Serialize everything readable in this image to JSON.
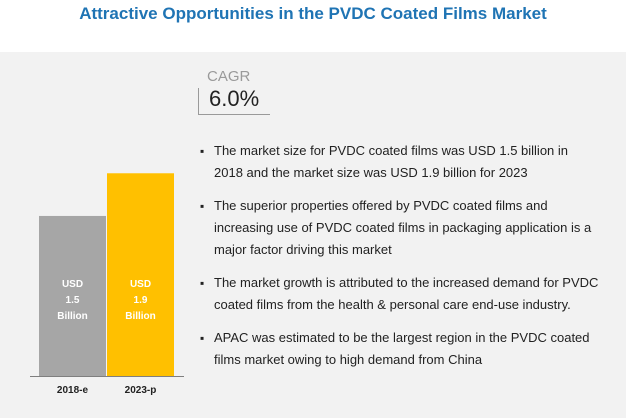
{
  "title": "Attractive Opportunities in the PVDC Coated Films Market",
  "cagr": {
    "label": "CAGR",
    "value": "6.0%"
  },
  "chart_data": {
    "type": "bar",
    "categories": [
      "2018-e",
      "2023-p"
    ],
    "values": [
      1.5,
      1.9
    ],
    "bar_labels": [
      [
        "USD",
        "1.5",
        "Billion"
      ],
      [
        "USD",
        "1.9",
        "Billion"
      ]
    ],
    "colors": [
      "#a6a6a6",
      "#ffc000"
    ],
    "title": "",
    "xlabel": "",
    "ylabel": "",
    "grid": false
  },
  "bullets": [
    "The market size for PVDC coated films was USD 1.5 billion in 2018 and the market size was USD 1.9 billion for 2023",
    "The superior properties offered by PVDC coated films and increasing use of PVDC coated films in packaging application is a major factor driving this market",
    "The market growth is attributed to the increased demand for PVDC coated films from the health & personal care end-use industry.",
    "APAC was estimated to be the largest region in the PVDC coated films market owing to high demand from China"
  ]
}
